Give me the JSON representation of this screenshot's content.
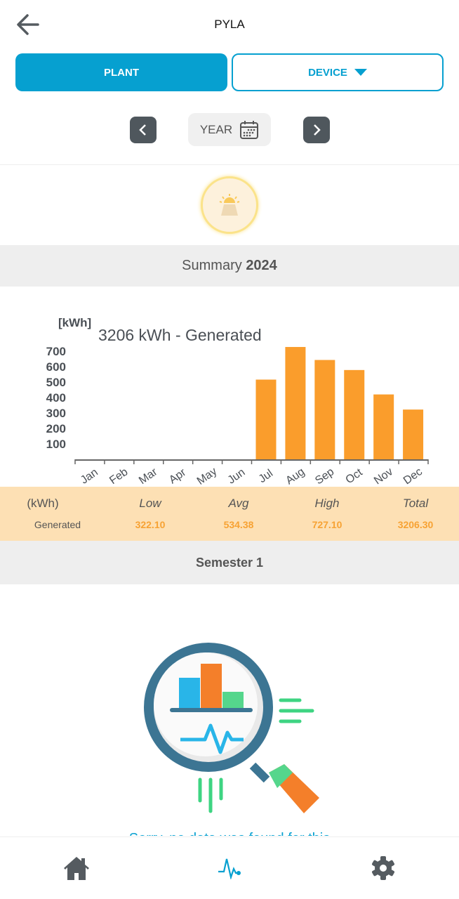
{
  "header": {
    "title": "PYLA"
  },
  "segments": {
    "plant": "PLANT",
    "device": "DEVICE"
  },
  "period": {
    "label": "YEAR"
  },
  "summary": {
    "prefix": "Summary",
    "year": "2024"
  },
  "chart_data": {
    "type": "bar",
    "title": "3206 kWh - Generated",
    "ylabel": "[kWh]",
    "xlabel": "",
    "categories": [
      "Jan",
      "Feb",
      "Mar",
      "Apr",
      "May",
      "Jun",
      "Jul",
      "Aug",
      "Sep",
      "Oct",
      "Nov",
      "Dec"
    ],
    "values": [
      0,
      0,
      0,
      0,
      0,
      0,
      516,
      727.1,
      643,
      578,
      420,
      322.1
    ],
    "yticks": [
      100,
      200,
      300,
      400,
      500,
      600,
      700
    ],
    "ylim": [
      0,
      720
    ],
    "color": "#fa9d2c",
    "grid": false
  },
  "stats": {
    "unit": "(kWh)",
    "row_label": "Generated",
    "headers": [
      "Low",
      "Avg",
      "High",
      "Total"
    ],
    "values": [
      "322.10",
      "534.38",
      "727.10",
      "3206.30"
    ]
  },
  "semester": {
    "label": "Semester 1"
  },
  "empty": {
    "message": "Sorry, no data was found for this"
  },
  "colors": {
    "accent": "#06a0d0",
    "bar": "#fa9d2c",
    "stats_bg": "#fde0b4"
  }
}
